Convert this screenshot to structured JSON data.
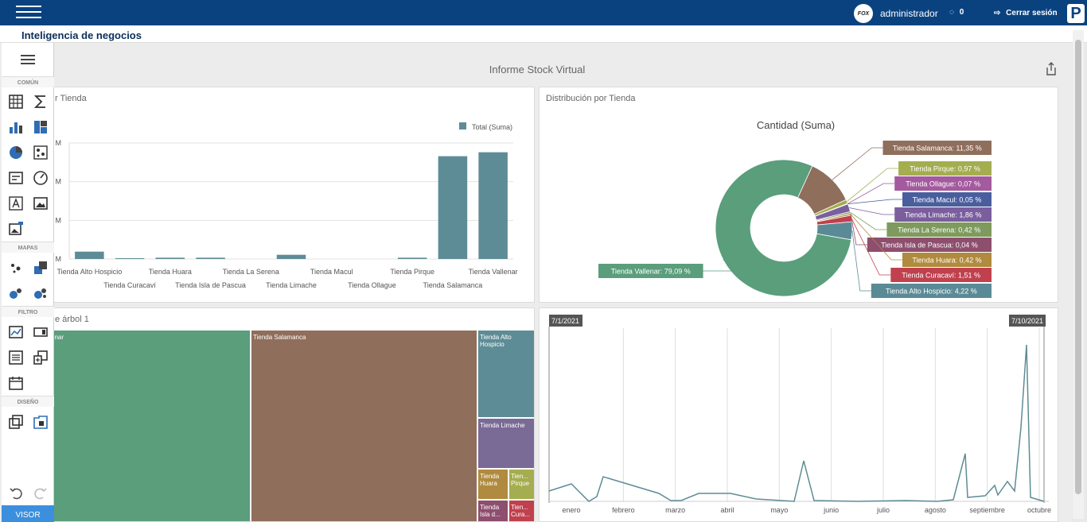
{
  "header": {
    "user_name": "administrador",
    "messages_count": "0",
    "logout_label": "Cerrar sesión",
    "logo_text": "FOX",
    "brand_letter": "P"
  },
  "page": {
    "title": "Inteligencia de negocios"
  },
  "dashboard": {
    "title": "Informe Stock Virtual"
  },
  "sidebar": {
    "sections": [
      "COMÚN",
      "MAPAS",
      "FILTRO",
      "DISEÑO"
    ],
    "visor_label": "VISOR"
  },
  "bar_panel": {
    "title": "r Tienda",
    "legend": "Total (Suma)",
    "y_ticks": [
      "M",
      "M",
      "M",
      "M"
    ]
  },
  "pie_panel": {
    "title": "Distribución por Tienda",
    "chart_title": "Cantidad (Suma)"
  },
  "treemap_panel": {
    "title": "e árbol 1",
    "cells": [
      {
        "label": "enar"
      },
      {
        "label": "Tienda Salamanca"
      },
      {
        "label": "Tienda Alto Hospicio"
      },
      {
        "label": "Tienda Limache"
      },
      {
        "label": "Tienda Huara"
      },
      {
        "label": "Tien... Pirque"
      },
      {
        "label": "Tienda Isla d..."
      },
      {
        "label": "Tien... Cura..."
      }
    ]
  },
  "range_panel": {
    "start_label": "7/1/2021",
    "end_label": "7/10/2021",
    "months": [
      "enero",
      "febrero",
      "marzo",
      "abril",
      "mayo",
      "junio",
      "julio",
      "agosto",
      "septiembre",
      "octubre"
    ]
  },
  "colors": {
    "topbar": "#0a4280",
    "bar": "#5e8c96",
    "vallenar": "#5a9e7c",
    "salamanca": "#8f6e5b"
  },
  "chart_data": [
    {
      "type": "bar",
      "categories": [
        "Tienda Alto Hospicio",
        "Tienda Curacaví",
        "Tienda Huara",
        "Tienda Isla de Pascua",
        "Tienda La Serena",
        "Tienda Limache",
        "Tienda Macul",
        "Tienda Ollague",
        "Tienda Pirque",
        "Tienda Salamanca",
        "Tienda Vallenar"
      ],
      "series": [
        {
          "name": "Total (Suma)",
          "values": [
            0.28,
            0.03,
            0.05,
            0.05,
            0.0,
            0.16,
            0.0,
            0.0,
            0.05,
            3.9,
            4.05
          ]
        }
      ],
      "ylim": [
        0,
        4.4
      ],
      "grid": true,
      "legend": "top-right"
    },
    {
      "type": "pie",
      "title": "Cantidad (Suma)",
      "slices": [
        {
          "label": "Tienda Vallenar",
          "value": 79.09,
          "text": "Tienda Vallenar: 79,09 %",
          "color": "#5a9e7c"
        },
        {
          "label": "Tienda Salamanca",
          "value": 11.35,
          "text": "Tienda Salamanca: 11,35 %",
          "color": "#8f6e5b"
        },
        {
          "label": "Tienda Pirque",
          "value": 0.97,
          "text": "Tienda Pirque: 0,97 %",
          "color": "#a4ad4f"
        },
        {
          "label": "Tienda Ollague",
          "value": 0.07,
          "text": "Tienda Ollague: 0,07 %",
          "color": "#a45a9e"
        },
        {
          "label": "Tienda Macul",
          "value": 0.05,
          "text": "Tienda Macul: 0,05 %",
          "color": "#4a5e9e"
        },
        {
          "label": "Tienda Limache",
          "value": 1.86,
          "text": "Tienda Limache: 1,86 %",
          "color": "#7a5e9e"
        },
        {
          "label": "Tienda La Serena",
          "value": 0.42,
          "text": "Tienda La Serena: 0,42 %",
          "color": "#7e9a5e"
        },
        {
          "label": "Tienda Isla de Pascua",
          "value": 0.04,
          "text": "Tienda Isla de Pascua: 0,04 %",
          "color": "#8e4e6e"
        },
        {
          "label": "Tienda Huara",
          "value": 0.42,
          "text": "Tienda Huara: 0,42 %",
          "color": "#b08a3e"
        },
        {
          "label": "Tienda Curacaví",
          "value": 1.51,
          "text": "Tienda Curacaví: 1,51 %",
          "color": "#c0404e"
        },
        {
          "label": "Tienda Alto Hospicio",
          "value": 4.22,
          "text": "Tienda Alto Hospicio: 4,22 %",
          "color": "#5a8a96"
        }
      ]
    },
    {
      "type": "line",
      "x": [
        "enero",
        "febrero",
        "marzo",
        "abril",
        "mayo",
        "junio",
        "julio",
        "agosto",
        "septiembre",
        "octubre"
      ],
      "values": [
        0.5,
        1.0,
        0.3,
        0.3,
        2.1,
        0.1,
        0.1,
        2.7,
        0.6,
        8.5
      ]
    }
  ]
}
